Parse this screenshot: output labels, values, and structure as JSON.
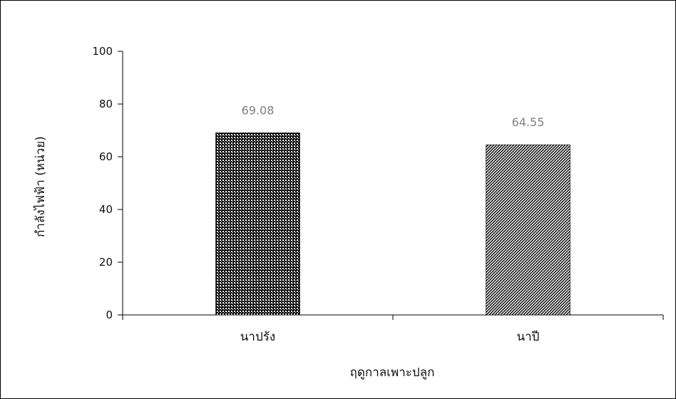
{
  "chart_data": {
    "type": "bar",
    "categories": [
      "นาปรัง",
      "นาปี"
    ],
    "values": [
      69.08,
      64.55
    ],
    "value_labels": [
      "69.08",
      "64.55"
    ],
    "xlabel": "ฤดูกาลเพาะปลูก",
    "ylabel": "กำลังไฟฟ้า (หน่วย)",
    "ylim": [
      0,
      100
    ],
    "yticks": [
      "0",
      "20",
      "40",
      "60",
      "80",
      "100"
    ],
    "grid": false,
    "legend": "none",
    "bar_patterns": [
      "dense-checker",
      "diagonal-stripes"
    ],
    "colors": {
      "bar": "#000000",
      "label": "#7f7f7f",
      "axis": "#000000",
      "frame": "#000000"
    }
  }
}
